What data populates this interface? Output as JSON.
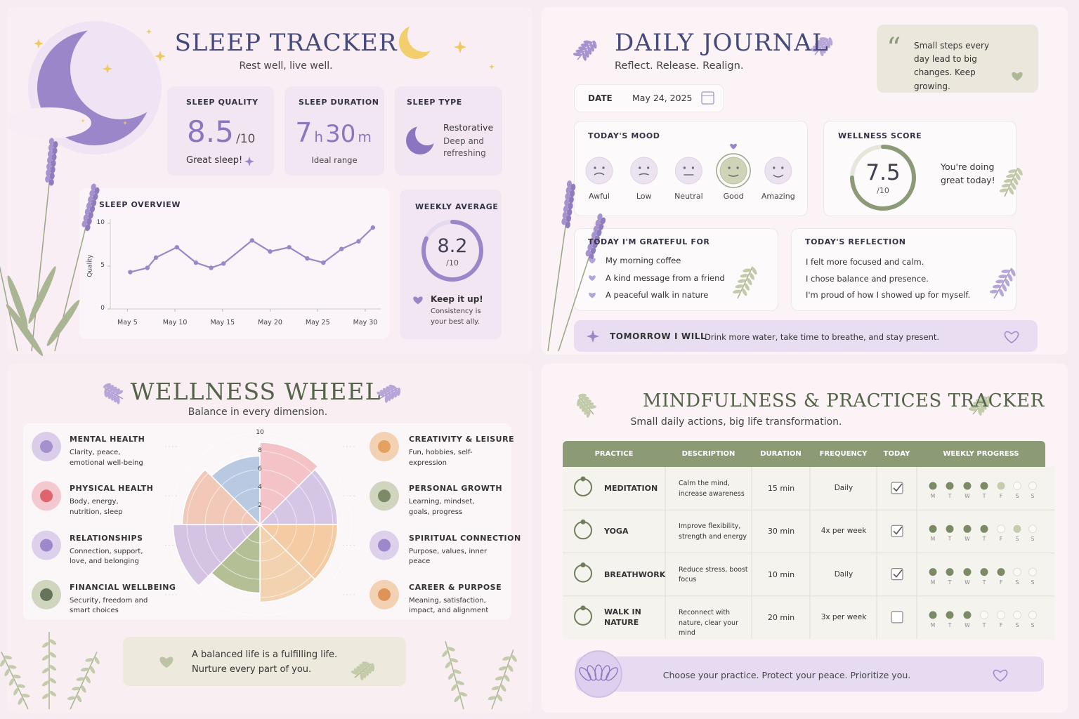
{
  "sleep_tracker": {
    "title": "SLEEP TRACKER",
    "subtitle": "Rest well, live well.",
    "quality": {
      "label": "SLEEP QUALITY",
      "value": 8.5,
      "unit": "/10",
      "note": "Great sleep!"
    },
    "duration": {
      "label": "SLEEP DURATION",
      "hours": 7,
      "hours_unit": "h",
      "minutes": 30,
      "minutes_unit": "m",
      "note": "Ideal range"
    },
    "type": {
      "label": "SLEEP TYPE",
      "value": "Restorative",
      "note": "Deep and refreshing"
    },
    "overview": {
      "type": "line",
      "title": "SLEEP OVERVIEW",
      "y_label": "Quality",
      "x": [
        5.3,
        7.1,
        8,
        10.2,
        12.2,
        13.8,
        15.1,
        18.1,
        20,
        22,
        23.9,
        25.6,
        27.5,
        29.3,
        30.8
      ],
      "values": [
        4.3,
        4.8,
        6,
        7.2,
        5.4,
        4.8,
        5.3,
        8,
        6.7,
        7.2,
        5.9,
        5.4,
        7,
        7.9,
        9.5
      ],
      "xlim": [
        3.2,
        31.7
      ],
      "xticks": [
        {
          "value": 5,
          "label": "May 5"
        },
        {
          "value": 10,
          "label": "May 10"
        },
        {
          "value": 15,
          "label": "May 15"
        },
        {
          "value": 20,
          "label": "May 20"
        },
        {
          "value": 25,
          "label": "May 25"
        },
        {
          "value": 30,
          "label": "May 30"
        }
      ],
      "ylim": [
        0,
        10
      ],
      "yticks": [
        0,
        5,
        10
      ],
      "color": "#9a86c8"
    },
    "weekly_average": {
      "label": "WEEKLY AVERAGE",
      "value": 8.2,
      "unit": "/10",
      "max": 10,
      "color": "#9a86c8",
      "message": "Keep it up!",
      "note": "Consistency is your best ally."
    }
  },
  "daily_journal": {
    "title": "DAILY JOURNAL",
    "subtitle": "Reflect. Release. Realign.",
    "quote": "Small steps every day lead to big changes. Keep growing.",
    "date": {
      "label": "DATE",
      "value": "May 24, 2025"
    },
    "mood": {
      "label": "TODAY'S MOOD",
      "options": [
        "Awful",
        "Low",
        "Neutral",
        "Good",
        "Amazing"
      ],
      "selected": 3
    },
    "wellness_score": {
      "label": "WELLNESS SCORE",
      "value": 7.5,
      "unit": "/10",
      "max": 10,
      "color": "#8d9a78",
      "message": "You're doing great today!"
    },
    "grateful": {
      "label": "TODAY I'M GRATEFUL FOR",
      "items": [
        "My morning coffee",
        "A kind message from a friend",
        "A peaceful walk in nature"
      ]
    },
    "reflection": {
      "label": "TODAY'S REFLECTION",
      "items": [
        "I felt more focused and calm.",
        "I chose balance and presence.",
        "I'm proud of how I showed up for myself."
      ]
    },
    "tomorrow": {
      "label": "TOMORROW I WILL",
      "text": "Drink more water, take time to breathe, and stay present."
    }
  },
  "wellness_wheel": {
    "title": "WELLNESS WHEEL",
    "subtitle": "Balance in every dimension.",
    "type": "polar-area",
    "rlim": [
      0,
      10
    ],
    "rticks": [
      2,
      4,
      6,
      8,
      10
    ],
    "dimensions": [
      {
        "name": "MENTAL HEALTH",
        "description": "Clarity, peace, emotional well-being",
        "value": 7.5,
        "color": "#b9c9e2"
      },
      {
        "name": "PHYSICAL HEALTH",
        "description": "Body, energy, nutrition, sleep",
        "value": 9,
        "color": "#f3c3c8"
      },
      {
        "name": "RELATIONSHIPS",
        "description": "Connection, support, love, and belonging",
        "value": 8.5,
        "color": "#d6c6e6"
      },
      {
        "name": "FINANCIAL WELLBEING",
        "description": "Security, freedom and smart choices",
        "value": 8.5,
        "color": "#f5cba3"
      },
      {
        "name": "CREATIVITY & LEISURE",
        "description": "Fun, hobbies, self-expression",
        "value": 8.5,
        "color": "#f3d2b0"
      },
      {
        "name": "PERSONAL GROWTH",
        "description": "Learning, mindset, goals, progress",
        "value": 7.5,
        "color": "#b5bf95"
      },
      {
        "name": "SPIRITUAL CONNECTION",
        "description": "Purpose, values, inner peace",
        "value": 9.5,
        "color": "#d4c3e3"
      },
      {
        "name": "CAREER & PURPOSE",
        "description": "Meaning, satisfaction, impact, and alignment",
        "value": 8.5,
        "color": "#f2c9b8"
      }
    ],
    "quote": "A balanced life is a fulfilling life. Nurture every part of you."
  },
  "practices": {
    "title": "MINDFULNESS & PRACTICES TRACKER",
    "subtitle": "Small daily actions, big life transformation.",
    "columns": [
      "PRACTICE",
      "DESCRIPTION",
      "DURATION",
      "FREQUENCY",
      "TODAY",
      "WEEKLY PROGRESS"
    ],
    "days": [
      "M",
      "T",
      "W",
      "T",
      "F",
      "S",
      "S"
    ],
    "rows": [
      {
        "practice": "MEDITATION",
        "description": "Calm the mind, increase awareness",
        "duration": "15 min",
        "frequency": "Daily",
        "today": true,
        "progress": [
          "done",
          "done",
          "done",
          "done",
          "partial",
          "none",
          "none"
        ]
      },
      {
        "practice": "YOGA",
        "description": "Improve flexibility, strength and energy",
        "duration": "30 min",
        "frequency": "4x per week",
        "today": true,
        "progress": [
          "done",
          "done",
          "done",
          "done",
          "none",
          "partial",
          "none"
        ]
      },
      {
        "practice": "BREATHWORK",
        "description": "Reduce stress, boost focus",
        "duration": "10 min",
        "frequency": "Daily",
        "today": true,
        "progress": [
          "done",
          "done",
          "done",
          "done",
          "done",
          "none",
          "none"
        ]
      },
      {
        "practice": "WALK IN NATURE",
        "description": "Reconnect with nature, clear your mind",
        "duration": "20 min",
        "frequency": "3x per week",
        "today": false,
        "progress": [
          "done",
          "done",
          "done",
          "none",
          "none",
          "none",
          "none"
        ]
      }
    ],
    "footer": "Choose your practice. Protect your peace. Prioritize you."
  }
}
